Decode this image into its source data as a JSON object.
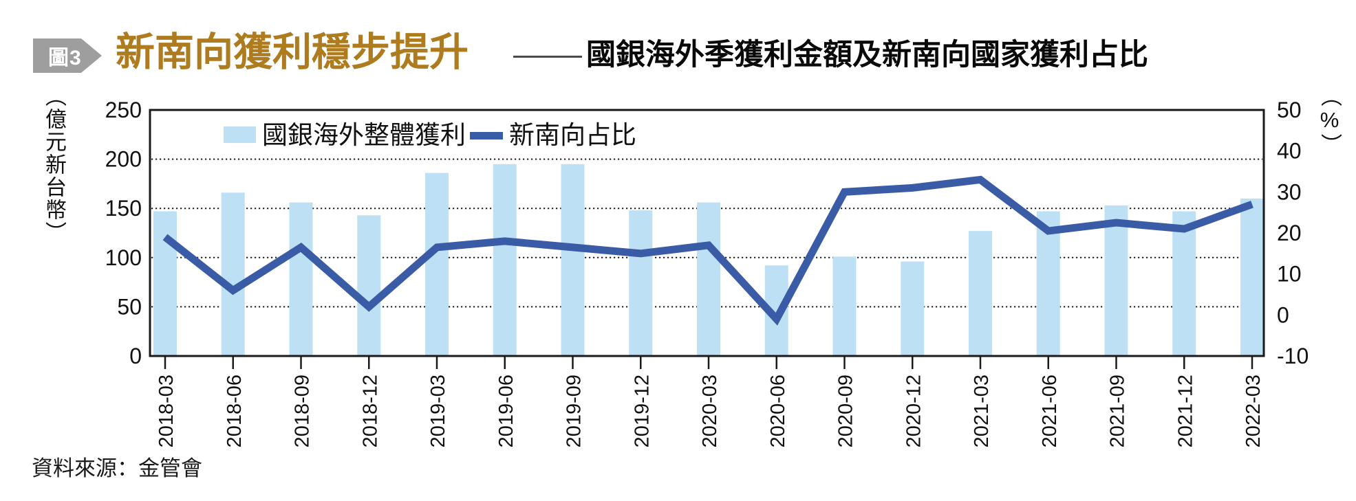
{
  "header": {
    "badge": "圖3",
    "title": "新南向獲利穩步提升",
    "subtitle": "國銀海外季獲利金額及新南向國家獲利占比"
  },
  "footer": {
    "source": "資料來源：金管會"
  },
  "colors": {
    "bar_blue": "#BEE0F5",
    "line_blue": "#3A5CA6",
    "title_gold": "#AE7B1F",
    "badge_gray": "#9E9E9E",
    "axis_black": "#1A1A1A"
  },
  "chart_data": {
    "type": "bar",
    "title": "國銀海外季獲利金額及新南向國家獲利占比",
    "categories": [
      "2018-03",
      "2018-06",
      "2018-09",
      "2018-12",
      "2019-03",
      "2019-06",
      "2019-09",
      "2019-12",
      "2020-03",
      "2020-06",
      "2020-09",
      "2020-12",
      "2021-03",
      "2021-06",
      "2021-09",
      "2021-12",
      "2022-03"
    ],
    "series": [
      {
        "name": "國銀海外整體獲利",
        "type": "bar",
        "axis": "left",
        "values": [
          147,
          166,
          156,
          143,
          186,
          195,
          195,
          148,
          156,
          92,
          101,
          96,
          127,
          147,
          153,
          147,
          160
        ]
      },
      {
        "name": "新南向占比",
        "type": "line",
        "axis": "right",
        "values": [
          19,
          6,
          16.5,
          2,
          16.5,
          18,
          16.5,
          15,
          17,
          -1,
          30,
          31,
          33,
          20.5,
          22.5,
          21,
          27
        ]
      }
    ],
    "left_axis": {
      "unit": "（億元新台幣）",
      "range": [
        0,
        250
      ],
      "ticks": [
        0,
        50,
        100,
        150,
        200,
        250
      ]
    },
    "right_axis": {
      "unit": "（%）",
      "range": [
        -10,
        50
      ],
      "ticks": [
        -10,
        0,
        10,
        20,
        30,
        40,
        50
      ]
    },
    "grid": "dotted horizontal lines at left-axis ticks 50/100/150/200",
    "legend_position": "top-left inside plot"
  }
}
